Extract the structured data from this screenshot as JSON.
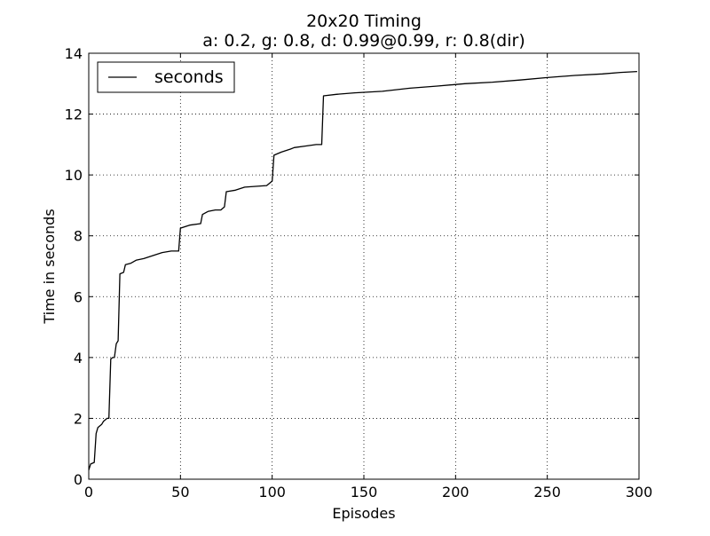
{
  "chart_data": {
    "type": "line",
    "title": "20x20 Timing",
    "subtitle": "a: 0.2, g: 0.8, d: 0.99@0.99, r: 0.8(dir)",
    "xlabel": "Episodes",
    "ylabel": "Time in seconds",
    "xlim": [
      0,
      300
    ],
    "ylim": [
      0,
      14
    ],
    "xticks": [
      0,
      50,
      100,
      150,
      200,
      250,
      300
    ],
    "yticks": [
      0,
      2,
      4,
      6,
      8,
      10,
      12,
      14
    ],
    "grid": true,
    "legend_position": "top-left",
    "series": [
      {
        "name": "seconds",
        "color": "#000000",
        "points": [
          [
            0,
            0.3
          ],
          [
            1,
            0.5
          ],
          [
            3,
            0.55
          ],
          [
            4,
            1.5
          ],
          [
            5,
            1.7
          ],
          [
            6,
            1.75
          ],
          [
            7,
            1.8
          ],
          [
            8,
            1.9
          ],
          [
            10,
            2.0
          ],
          [
            11,
            2.0
          ],
          [
            12,
            3.95
          ],
          [
            13,
            4.0
          ],
          [
            14,
            4.0
          ],
          [
            15,
            4.45
          ],
          [
            16,
            4.55
          ],
          [
            17,
            6.75
          ],
          [
            19,
            6.8
          ],
          [
            20,
            7.05
          ],
          [
            23,
            7.1
          ],
          [
            26,
            7.2
          ],
          [
            30,
            7.25
          ],
          [
            35,
            7.35
          ],
          [
            40,
            7.45
          ],
          [
            45,
            7.5
          ],
          [
            49,
            7.5
          ],
          [
            50,
            8.25
          ],
          [
            55,
            8.35
          ],
          [
            61,
            8.4
          ],
          [
            62,
            8.7
          ],
          [
            65,
            8.8
          ],
          [
            69,
            8.85
          ],
          [
            72,
            8.85
          ],
          [
            74,
            8.95
          ],
          [
            75,
            9.45
          ],
          [
            80,
            9.5
          ],
          [
            85,
            9.6
          ],
          [
            97,
            9.65
          ],
          [
            99,
            9.75
          ],
          [
            100,
            9.8
          ],
          [
            101,
            10.65
          ],
          [
            105,
            10.75
          ],
          [
            110,
            10.85
          ],
          [
            112,
            10.9
          ],
          [
            118,
            10.95
          ],
          [
            124,
            11.0
          ],
          [
            127,
            11.0
          ],
          [
            128,
            12.6
          ],
          [
            135,
            12.65
          ],
          [
            145,
            12.7
          ],
          [
            160,
            12.75
          ],
          [
            175,
            12.85
          ],
          [
            190,
            12.92
          ],
          [
            205,
            13.0
          ],
          [
            220,
            13.05
          ],
          [
            235,
            13.12
          ],
          [
            250,
            13.2
          ],
          [
            265,
            13.27
          ],
          [
            280,
            13.32
          ],
          [
            290,
            13.37
          ],
          [
            299,
            13.4
          ]
        ]
      }
    ]
  }
}
